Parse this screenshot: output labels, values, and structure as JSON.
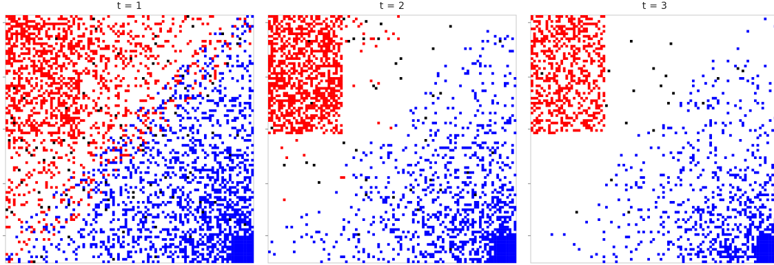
{
  "colors": {
    "red": "#ff0000",
    "blue": "#0000ff",
    "black": "#000000",
    "background": "#ffffff",
    "frame": "#c8c8c8"
  },
  "chart_data": [
    {
      "type": "heatmap",
      "title": "t = 1",
      "grid": false,
      "n": 100,
      "category_colors": {
        "1": "red",
        "2": "blue",
        "3": "black"
      },
      "seed": 11,
      "params": {
        "red_block_fill": 0.55,
        "red_spread": 0.42,
        "blue_spread": 0.45,
        "black_rate": 0.012
      }
    },
    {
      "type": "heatmap",
      "title": "t = 2",
      "grid": false,
      "n": 100,
      "category_colors": {
        "1": "red",
        "2": "blue",
        "3": "black"
      },
      "seed": 23,
      "params": {
        "red_block_fill": 0.7,
        "red_spread": 0.12,
        "blue_spread": 0.3,
        "black_rate": 0.004
      }
    },
    {
      "type": "heatmap",
      "title": "t = 3",
      "grid": false,
      "n": 100,
      "category_colors": {
        "1": "red",
        "2": "blue",
        "3": "black"
      },
      "seed": 37,
      "params": {
        "red_block_fill": 0.5,
        "red_spread": 0.08,
        "blue_spread": 0.26,
        "black_rate": 0.003
      }
    }
  ]
}
